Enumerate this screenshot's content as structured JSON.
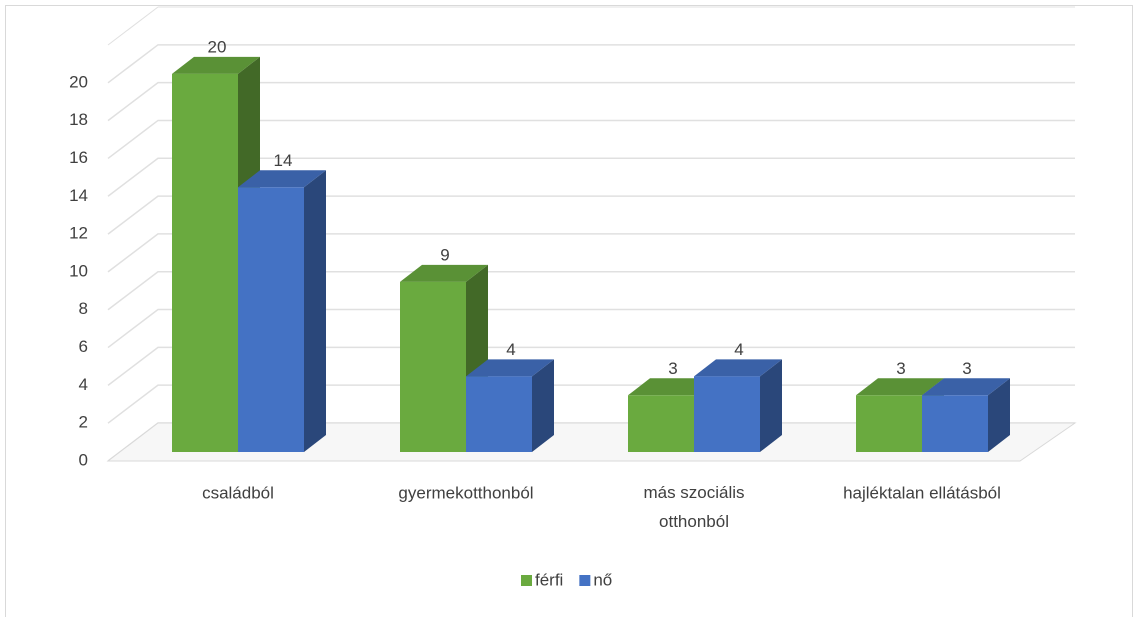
{
  "chart_data": {
    "type": "bar3d",
    "categories": [
      "családból",
      "gyermekotthonból",
      "más szociális otthonból",
      "hajléktalan ellátásból"
    ],
    "series": [
      {
        "name": "férfi",
        "color": "#6aaa3f",
        "values": [
          20,
          9,
          3,
          3
        ]
      },
      {
        "name": "nő",
        "color": "#4472c4",
        "values": [
          14,
          4,
          4,
          3
        ]
      }
    ],
    "ylim": [
      0,
      22
    ],
    "yticks": [
      0,
      2,
      4,
      6,
      8,
      10,
      12,
      14,
      16,
      18,
      20
    ],
    "grid": true,
    "legend": "bottom"
  }
}
